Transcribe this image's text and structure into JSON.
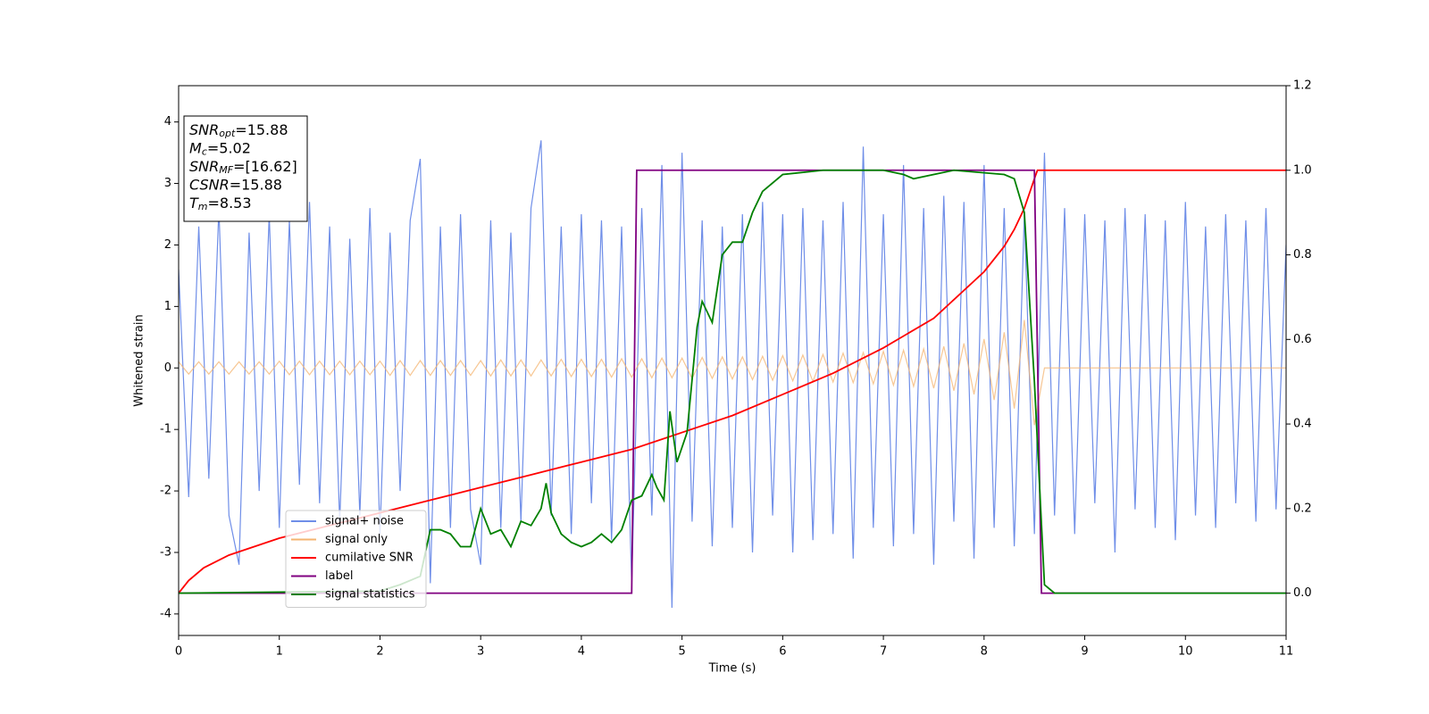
{
  "chart_data": {
    "type": "line",
    "xlabel": "Time (s)",
    "ylabel": "Whitened strain",
    "xlim": [
      0,
      11
    ],
    "ylim": [
      -4.35,
      4.59
    ],
    "y2lim": [
      -0.1,
      1.2
    ],
    "xticks": [
      0,
      1,
      2,
      3,
      4,
      5,
      6,
      7,
      8,
      9,
      10,
      11
    ],
    "yticks": [
      -4,
      -3,
      -2,
      -1,
      0,
      1,
      2,
      3,
      4
    ],
    "y2ticks": [
      {
        "value": 0,
        "label": "0.0"
      },
      0.2,
      0.4,
      0.6,
      0.8,
      {
        "value": 1,
        "label": "1.0"
      },
      1.2
    ],
    "legend": "lower left",
    "annotations": [
      {
        "main": "SNR",
        "sub": "opt",
        "rest": "=15.88"
      },
      {
        "main": "M",
        "sub": "c",
        "rest": "=5.02"
      },
      {
        "main": "SNR",
        "sub": "MF",
        "rest": "=[16.62]"
      },
      {
        "main": "CSNR",
        "rest": "=15.88"
      },
      {
        "main": "T",
        "sub": "m",
        "rest": "=8.53"
      }
    ],
    "series": [
      {
        "name": "signal+ noise",
        "color": "#6f8ee8",
        "x": [
          0,
          0.1,
          0.2,
          0.3,
          0.4,
          0.5,
          0.6,
          0.7,
          0.8,
          0.9,
          1,
          1.1,
          1.2,
          1.3,
          1.4,
          1.5,
          1.6,
          1.7,
          1.8,
          1.9,
          2,
          2.1,
          2.2,
          2.3,
          2.4,
          2.5,
          2.6,
          2.7,
          2.8,
          2.9,
          3,
          3.1,
          3.2,
          3.3,
          3.4,
          3.5,
          3.6,
          3.7,
          3.8,
          3.9,
          4,
          4.1,
          4.2,
          4.3,
          4.4,
          4.5,
          4.6,
          4.7,
          4.8,
          4.9,
          5,
          5.1,
          5.2,
          5.3,
          5.4,
          5.5,
          5.6,
          5.7,
          5.8,
          5.9,
          6,
          6.1,
          6.2,
          6.3,
          6.4,
          6.5,
          6.6,
          6.7,
          6.8,
          6.9,
          7,
          7.1,
          7.2,
          7.3,
          7.4,
          7.5,
          7.6,
          7.7,
          7.8,
          7.9,
          8,
          8.1,
          8.2,
          8.3,
          8.4,
          8.5,
          8.6,
          8.7,
          8.8,
          8.9,
          9,
          9.1,
          9.2,
          9.3,
          9.4,
          9.5,
          9.6,
          9.7,
          9.8,
          9.9,
          10,
          10.1,
          10.2,
          10.3,
          10.4,
          10.5,
          10.6,
          10.7,
          10.8,
          10.9,
          11
        ],
        "values": [
          1.6,
          -2.1,
          2.3,
          -1.8,
          2.6,
          -2.4,
          -3.2,
          2.2,
          -2.0,
          2.5,
          -2.6,
          2.4,
          -1.9,
          2.7,
          -2.2,
          2.3,
          -2.5,
          2.1,
          -2.4,
          2.6,
          -2.7,
          2.2,
          -2.0,
          2.4,
          3.4,
          -3.5,
          2.3,
          -2.6,
          2.5,
          -2.3,
          -3.2,
          2.4,
          -2.6,
          2.2,
          -2.5,
          2.6,
          3.7,
          -2.4,
          2.3,
          -2.7,
          2.5,
          -2.2,
          2.4,
          -2.8,
          2.3,
          -3.5,
          2.6,
          -2.4,
          3.3,
          -3.9,
          3.5,
          -2.5,
          2.4,
          -2.9,
          2.3,
          -2.6,
          2.5,
          -3.0,
          2.7,
          -2.4,
          2.5,
          -3.0,
          2.6,
          -2.8,
          2.4,
          -2.7,
          2.7,
          -3.1,
          3.6,
          -2.6,
          2.5,
          -2.9,
          3.3,
          -2.7,
          2.6,
          -3.2,
          2.8,
          -2.5,
          2.7,
          -3.1,
          3.3,
          -2.6,
          2.6,
          -2.9,
          2.5,
          -2.7,
          3.5,
          -2.4,
          2.6,
          -2.7,
          2.5,
          -2.2,
          2.4,
          -3.0,
          2.6,
          -2.3,
          2.5,
          -2.6,
          2.4,
          -2.8,
          2.7,
          -2.4,
          2.3,
          -2.6,
          2.5,
          -2.2,
          2.4,
          -2.5,
          2.6,
          -2.3,
          2.0
        ]
      },
      {
        "name": "signal only",
        "color": "#f4b470",
        "x": [
          0,
          0.1,
          0.2,
          0.3,
          0.4,
          0.5,
          0.6,
          0.7,
          0.8,
          0.9,
          1,
          1.1,
          1.2,
          1.3,
          1.4,
          1.5,
          1.6,
          1.7,
          1.8,
          1.9,
          2,
          2.1,
          2.2,
          2.3,
          2.4,
          2.5,
          2.6,
          2.7,
          2.8,
          2.9,
          3,
          3.1,
          3.2,
          3.3,
          3.4,
          3.5,
          3.6,
          3.7,
          3.8,
          3.9,
          4,
          4.1,
          4.2,
          4.3,
          4.4,
          4.5,
          4.6,
          4.7,
          4.8,
          4.9,
          5,
          5.1,
          5.2,
          5.3,
          5.4,
          5.5,
          5.6,
          5.7,
          5.8,
          5.9,
          6,
          6.1,
          6.2,
          6.3,
          6.4,
          6.5,
          6.6,
          6.7,
          6.8,
          6.9,
          7,
          7.1,
          7.2,
          7.3,
          7.4,
          7.5,
          7.6,
          7.7,
          7.8,
          7.9,
          8,
          8.1,
          8.2,
          8.3,
          8.4,
          8.5,
          8.6,
          8.7,
          8.8,
          8.9,
          9,
          9.1,
          9.2,
          9.3,
          9.4,
          9.5,
          9.6,
          9.7,
          9.8,
          9.9,
          10,
          10.1,
          10.2,
          10.3,
          10.4,
          10.5,
          10.6,
          10.7,
          10.8,
          10.9,
          11
        ],
        "values": [
          0.1,
          -0.1,
          0.1,
          -0.1,
          0.1,
          -0.1,
          0.1,
          -0.1,
          0.1,
          -0.1,
          0.11,
          -0.11,
          0.11,
          -0.11,
          0.11,
          -0.11,
          0.11,
          -0.11,
          0.11,
          -0.11,
          0.11,
          -0.12,
          0.12,
          -0.12,
          0.12,
          -0.12,
          0.12,
          -0.12,
          0.12,
          -0.12,
          0.12,
          -0.13,
          0.13,
          -0.13,
          0.13,
          -0.13,
          0.13,
          -0.13,
          0.14,
          -0.14,
          0.14,
          -0.14,
          0.14,
          -0.15,
          0.15,
          -0.15,
          0.15,
          -0.16,
          0.16,
          -0.16,
          0.16,
          -0.17,
          0.17,
          -0.17,
          0.18,
          -0.18,
          0.18,
          -0.19,
          0.19,
          -0.2,
          0.2,
          -0.21,
          0.21,
          -0.22,
          0.22,
          -0.23,
          0.24,
          -0.24,
          0.25,
          -0.26,
          0.27,
          -0.28,
          0.29,
          -0.3,
          0.31,
          -0.33,
          0.35,
          -0.37,
          0.4,
          -0.43,
          0.47,
          -0.52,
          0.58,
          -0.66,
          0.78,
          -0.93,
          0,
          0,
          0,
          0,
          0,
          0,
          0,
          0,
          0,
          0,
          0,
          0,
          0,
          0,
          0,
          0,
          0,
          0,
          0,
          0,
          0,
          0,
          0,
          0,
          0
        ]
      },
      {
        "name": "cumilative SNR",
        "color": "#ff0000",
        "axis": "y2",
        "x": [
          0,
          0.1,
          0.25,
          0.5,
          1,
          1.5,
          2,
          2.5,
          3,
          3.5,
          4,
          4.5,
          5,
          5.5,
          6,
          6.5,
          7,
          7.5,
          8,
          8.2,
          8.3,
          8.4,
          8.5,
          8.53,
          11
        ],
        "values": [
          0,
          0.03,
          0.06,
          0.09,
          0.13,
          0.16,
          0.19,
          0.22,
          0.25,
          0.28,
          0.31,
          0.34,
          0.38,
          0.42,
          0.47,
          0.52,
          0.58,
          0.65,
          0.76,
          0.82,
          0.86,
          0.91,
          0.98,
          1,
          1
        ]
      },
      {
        "name": "label",
        "color": "#800080",
        "axis": "y2",
        "x": [
          0,
          4.5,
          4.55,
          8.5,
          8.57,
          11
        ],
        "values": [
          0,
          0,
          1,
          1,
          0,
          0
        ]
      },
      {
        "name": "signal statistics",
        "color": "#008000",
        "axis": "y2",
        "x": [
          0,
          2.0,
          2.2,
          2.4,
          2.5,
          2.6,
          2.7,
          2.8,
          2.9,
          3.0,
          3.1,
          3.2,
          3.3,
          3.4,
          3.5,
          3.6,
          3.65,
          3.7,
          3.8,
          3.9,
          4.0,
          4.1,
          4.2,
          4.3,
          4.4,
          4.5,
          4.6,
          4.7,
          4.75,
          4.82,
          4.88,
          4.95,
          5.05,
          5.15,
          5.2,
          5.3,
          5.4,
          5.5,
          5.6,
          5.7,
          5.8,
          6.0,
          6.4,
          7.0,
          7.2,
          7.3,
          7.5,
          7.7,
          8.2,
          8.3,
          8.4,
          8.5,
          8.6,
          8.7,
          11
        ],
        "values": [
          0,
          0.005,
          0.02,
          0.04,
          0.15,
          0.15,
          0.14,
          0.11,
          0.11,
          0.2,
          0.14,
          0.15,
          0.11,
          0.17,
          0.16,
          0.2,
          0.26,
          0.19,
          0.14,
          0.12,
          0.11,
          0.12,
          0.14,
          0.12,
          0.15,
          0.22,
          0.23,
          0.28,
          0.25,
          0.22,
          0.43,
          0.31,
          0.38,
          0.63,
          0.69,
          0.64,
          0.8,
          0.83,
          0.83,
          0.9,
          0.95,
          0.99,
          1,
          1,
          0.99,
          0.98,
          0.99,
          1,
          0.99,
          0.98,
          0.9,
          0.5,
          0.02,
          0,
          0
        ]
      }
    ]
  }
}
